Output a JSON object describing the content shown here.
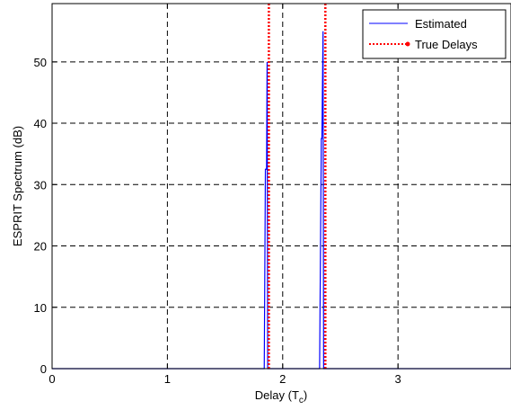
{
  "chart_data": {
    "type": "line",
    "xlabel": "Delay (T",
    "xlabel_sub": "c",
    "xlabel_suffix": ")",
    "ylabel": "ESPRIT Spectrum (dB)",
    "xlim": [
      0,
      3.98
    ],
    "ylim": [
      0,
      59.5
    ],
    "xticks": [
      0,
      1,
      2,
      3
    ],
    "yticks": [
      0,
      10,
      20,
      30,
      40,
      50
    ],
    "grid": true,
    "legend_position": "top-right",
    "series": [
      {
        "name": "Estimated",
        "color": "#0000ff",
        "style": "solid",
        "x": [
          0,
          1.84,
          1.85,
          1.86,
          1.865,
          1.87,
          2.32,
          2.335,
          2.34,
          2.35,
          2.355,
          2.36,
          3.98
        ],
        "y": [
          0,
          0,
          32.5,
          32.5,
          50,
          0,
          0,
          37.5,
          37.5,
          55,
          0,
          0,
          0
        ]
      },
      {
        "name": "True Delays",
        "color": "#ff0000",
        "style": "dotted",
        "x": [
          1.88,
          2.37
        ],
        "y": [
          59.5,
          59.5
        ]
      }
    ]
  }
}
